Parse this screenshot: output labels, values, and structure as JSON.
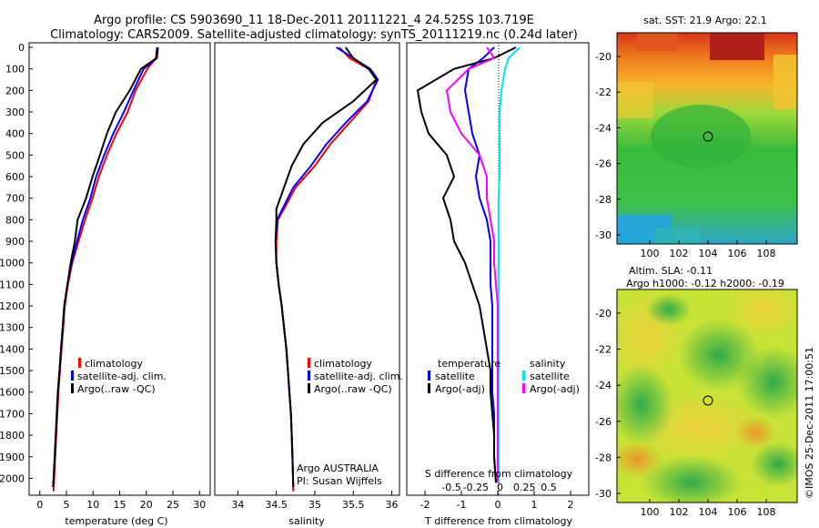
{
  "header": {
    "line1": "Argo profile: CS 5903690_11 18-Dec-2011 20111221_4 24.525S 103.719E",
    "line2": "Climatology: CARS2009. Satellite-adjusted climatology: synTS_20111219.nc (0.24d later)"
  },
  "colors": {
    "climatology": "#ff0000",
    "satellite": "#0000ff",
    "argo": "#000000",
    "salinity_satellite": "#00e5ee",
    "salinity_argo": "#ff00ff"
  },
  "depth_ticks": [
    0,
    100,
    200,
    300,
    400,
    500,
    600,
    700,
    800,
    900,
    1000,
    1100,
    1200,
    1300,
    1400,
    1500,
    1600,
    1700,
    1800,
    1900,
    2000
  ],
  "legend": {
    "climatology": "climatology",
    "satellite_adj": "satellite-adj. clim.",
    "argo": "Argo(..raw -QC)"
  },
  "diff_legend": {
    "temperature_title": "temperature",
    "salinity_title": "salinity",
    "satellite": "satellite",
    "argo": "Argo(-adj)"
  },
  "credits": {
    "line1": "Argo AUSTRALIA",
    "line2": "PI: Susan Wijffels"
  },
  "maps": {
    "sst_title": "sat. SST: 21.9  Argo: 22.1",
    "sla_title1": "Altim. SLA: -0.11",
    "sla_title2": "Argo h1000: -0.12  h2000: -0.19",
    "lat_ticks": [
      "-20",
      "-22",
      "-24",
      "-26",
      "-28",
      "-30"
    ],
    "lon_ticks": [
      "100",
      "102",
      "104",
      "106",
      "108"
    ],
    "float_position": {
      "lat": -24.525,
      "lon": 103.719
    },
    "imos_stamp": "©IMOS 25-Dec-2011 17:00:51"
  },
  "chart_data": [
    {
      "type": "line",
      "xlabel": "temperature (deg C)",
      "ylabel": "",
      "xlim": [
        -2,
        32
      ],
      "ylim": [
        2070,
        0
      ],
      "xticks": [
        0,
        5,
        10,
        15,
        20,
        25,
        30
      ],
      "series": [
        {
          "name": "climatology",
          "x": [
            22,
            21.8,
            20.2,
            18,
            16.5,
            14.4,
            12.6,
            11.1,
            9.9,
            8.5,
            7.3,
            6.1,
            5.3,
            4.7,
            4.4,
            4.1,
            3.8,
            3.5,
            3.3,
            3.1,
            2.9,
            2.7,
            2.6
          ],
          "y": [
            0,
            50,
            100,
            200,
            300,
            400,
            500,
            600,
            700,
            800,
            900,
            1000,
            1100,
            1200,
            1300,
            1400,
            1500,
            1600,
            1700,
            1800,
            1900,
            2000,
            2060
          ]
        },
        {
          "name": "satellite-adj. clim.",
          "x": [
            22.2,
            22,
            19.5,
            17.6,
            15.8,
            13.8,
            12.1,
            10.6,
            9.5,
            8.1,
            7,
            6,
            5.2,
            4.6,
            4.3,
            4,
            3.7,
            3.4,
            3.2,
            3,
            2.8,
            2.6,
            2.5
          ],
          "y": [
            0,
            50,
            100,
            200,
            300,
            400,
            500,
            600,
            700,
            800,
            900,
            1000,
            1100,
            1200,
            1300,
            1400,
            1500,
            1600,
            1700,
            1800,
            1900,
            2000,
            2040
          ]
        },
        {
          "name": "Argo(..raw -QC)",
          "x": [
            22.1,
            21.9,
            19,
            16.9,
            14.3,
            12.6,
            11.3,
            9.9,
            8.7,
            7.1,
            6.6,
            5.8,
            5.2,
            4.6,
            4.3,
            4,
            3.7,
            3.4,
            3.2,
            3,
            2.8,
            2.6,
            2.5
          ],
          "y": [
            0,
            50,
            100,
            200,
            300,
            400,
            500,
            600,
            700,
            800,
            900,
            1000,
            1100,
            1200,
            1300,
            1400,
            1500,
            1600,
            1700,
            1800,
            1900,
            2000,
            2040
          ]
        }
      ]
    },
    {
      "type": "line",
      "xlabel": "salinity",
      "ylabel": "",
      "xlim": [
        33.7,
        36.1
      ],
      "ylim": [
        2070,
        0
      ],
      "xticks": [
        34,
        34.5,
        35,
        35.5,
        36
      ],
      "series": [
        {
          "name": "climatology",
          "x": [
            35.32,
            35.45,
            35.7,
            35.8,
            35.7,
            35.45,
            35.2,
            35.0,
            34.75,
            34.6,
            34.52,
            34.5,
            34.5,
            34.53,
            34.57,
            34.6,
            34.63,
            34.65,
            34.67,
            34.69,
            34.7,
            34.71,
            34.72
          ],
          "y": [
            0,
            50,
            100,
            150,
            250,
            350,
            450,
            550,
            650,
            750,
            800,
            900,
            1000,
            1100,
            1200,
            1300,
            1400,
            1500,
            1600,
            1700,
            1800,
            1900,
            2060
          ]
        },
        {
          "name": "satellite-adj. clim.",
          "x": [
            35.28,
            35.5,
            35.72,
            35.82,
            35.68,
            35.4,
            35.15,
            34.95,
            34.72,
            34.58,
            34.51,
            34.49,
            34.5,
            34.53,
            34.57,
            34.6,
            34.63,
            34.65,
            34.67,
            34.69,
            34.7,
            34.71,
            34.72
          ],
          "y": [
            0,
            50,
            100,
            150,
            250,
            350,
            450,
            550,
            650,
            750,
            800,
            900,
            1000,
            1100,
            1200,
            1300,
            1400,
            1500,
            1600,
            1700,
            1800,
            1900,
            2040
          ]
        },
        {
          "name": "Argo(..raw -QC)",
          "x": [
            35.4,
            35.5,
            35.7,
            35.8,
            35.5,
            35.1,
            34.85,
            34.7,
            34.6,
            34.5,
            34.5,
            34.49,
            34.5,
            34.53,
            34.57,
            34.6,
            34.63,
            34.65,
            34.67,
            34.69,
            34.7,
            34.71,
            34.72
          ],
          "y": [
            0,
            50,
            100,
            150,
            250,
            350,
            450,
            550,
            650,
            750,
            800,
            900,
            1000,
            1100,
            1200,
            1300,
            1400,
            1500,
            1600,
            1700,
            1800,
            1900,
            2040
          ]
        }
      ]
    },
    {
      "type": "line",
      "xlabel": "T difference from climatology",
      "ylabel": "",
      "secondary_xlabel": "S difference from climatology",
      "xlim": [
        -2.5,
        2.5
      ],
      "ylim": [
        2070,
        0
      ],
      "xticks": [
        -2,
        -1,
        0,
        1,
        2
      ],
      "secondary_ticks": [
        "-0.5",
        "-0.25",
        "0",
        "0.25",
        "0.5"
      ],
      "series": [
        {
          "name": "temperature satellite",
          "x": [
            -0.1,
            -0.4,
            -0.8,
            -0.9,
            -0.8,
            -0.7,
            -0.5,
            -0.6,
            -0.5,
            -0.3,
            -0.2,
            -0.2,
            -0.2,
            -0.15,
            -0.15,
            -0.15,
            -0.15,
            -0.15,
            -0.1,
            -0.1,
            -0.1,
            -0.05
          ],
          "y": [
            0,
            50,
            100,
            200,
            300,
            400,
            500,
            600,
            700,
            800,
            900,
            1000,
            1100,
            1200,
            1300,
            1400,
            1500,
            1600,
            1700,
            1800,
            1900,
            2020
          ]
        },
        {
          "name": "temperature Argo(-adj)",
          "x": [
            0.5,
            -0.1,
            -1.2,
            -2.2,
            -2.1,
            -1.9,
            -1.4,
            -1.2,
            -1.5,
            -1.3,
            -1.2,
            -0.9,
            -0.7,
            -0.5,
            -0.4,
            -0.3,
            -0.2,
            -0.2,
            -0.15,
            -0.1,
            -0.1,
            -0.05
          ],
          "y": [
            0,
            50,
            100,
            200,
            300,
            400,
            500,
            600,
            700,
            800,
            900,
            1000,
            1100,
            1200,
            1300,
            1400,
            1500,
            1600,
            1700,
            1800,
            1900,
            2020
          ]
        },
        {
          "name": "salinity satellite",
          "x": [
            0.6,
            0.3,
            0.2,
            0.1,
            0.05,
            0.05,
            0.05,
            0.05,
            0.02,
            0.02,
            0.02,
            0.02,
            0.02,
            0.02,
            0.02,
            0.02,
            0.02,
            0.02,
            0.02,
            0.02,
            0.02,
            0.02
          ],
          "y": [
            0,
            50,
            100,
            200,
            300,
            400,
            500,
            600,
            700,
            800,
            900,
            1000,
            1100,
            1200,
            1300,
            1400,
            1500,
            1600,
            1700,
            1800,
            1900,
            2020
          ]
        },
        {
          "name": "salinity Argo(-adj)",
          "x": [
            -0.3,
            -0.1,
            -0.8,
            -1.4,
            -1.3,
            -1.0,
            -0.5,
            -0.3,
            -0.3,
            -0.2,
            -0.1,
            -0.1,
            -0.05,
            0,
            0,
            0,
            0,
            0,
            0,
            0,
            0,
            0
          ],
          "y": [
            0,
            50,
            100,
            200,
            300,
            400,
            500,
            600,
            700,
            800,
            900,
            1000,
            1100,
            1200,
            1300,
            1400,
            1500,
            1600,
            1700,
            1800,
            1900,
            2020
          ]
        }
      ]
    }
  ]
}
